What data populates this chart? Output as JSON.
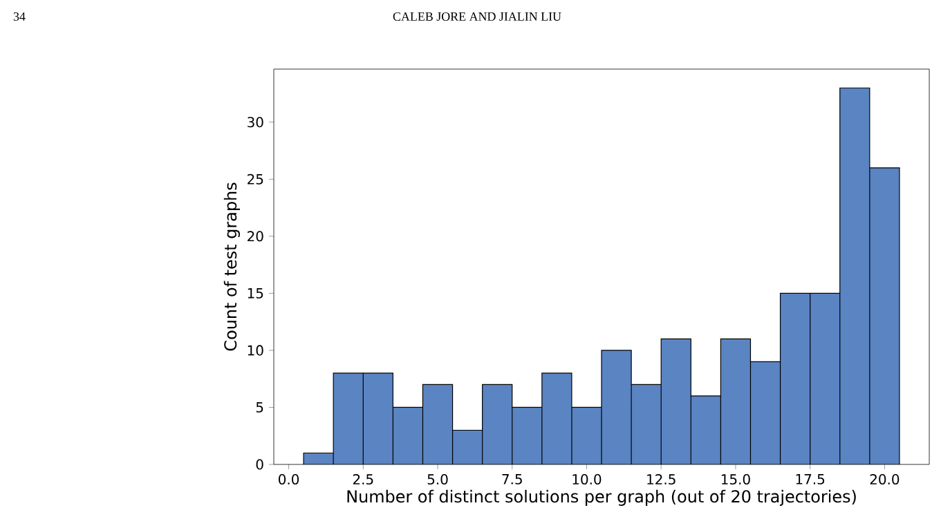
{
  "chart_data": {
    "type": "histogram",
    "xlabel": "Number of distinct solutions per graph (out of 20 trajectories)",
    "ylabel": "Count of test graphs",
    "color": "#5a84c2",
    "bins": [
      0.5,
      1.5,
      2.5,
      3.5,
      4.5,
      5.5,
      6.5,
      7.5,
      8.5,
      9.5,
      10.5,
      11.5,
      12.5,
      13.5,
      14.5,
      15.5,
      16.5,
      17.5,
      18.5,
      19.5,
      20.5
    ],
    "values": [
      1,
      8,
      8,
      5,
      7,
      3,
      7,
      5,
      8,
      5,
      10,
      7,
      11,
      6,
      11,
      9,
      15,
      15,
      33,
      26
    ],
    "xlim": [
      -0.5,
      21.5
    ],
    "ylim": [
      0,
      34.65
    ],
    "xticks": [
      {
        "value": 0,
        "label": "0.0"
      },
      {
        "value": 2.5,
        "label": "2.5"
      },
      {
        "value": 5,
        "label": "5.0"
      },
      {
        "value": 7.5,
        "label": "7.5"
      },
      {
        "value": 10,
        "label": "10.0"
      },
      {
        "value": 12.5,
        "label": "12.5"
      },
      {
        "value": 15,
        "label": "15.0"
      },
      {
        "value": 17.5,
        "label": "17.5"
      },
      {
        "value": 20,
        "label": "20.0"
      }
    ],
    "yticks": [
      0,
      5,
      10,
      15,
      20,
      25,
      30
    ],
    "grid": false,
    "annotations": [
      "34",
      "CALEB JORE AND JIALIN LIU"
    ]
  }
}
